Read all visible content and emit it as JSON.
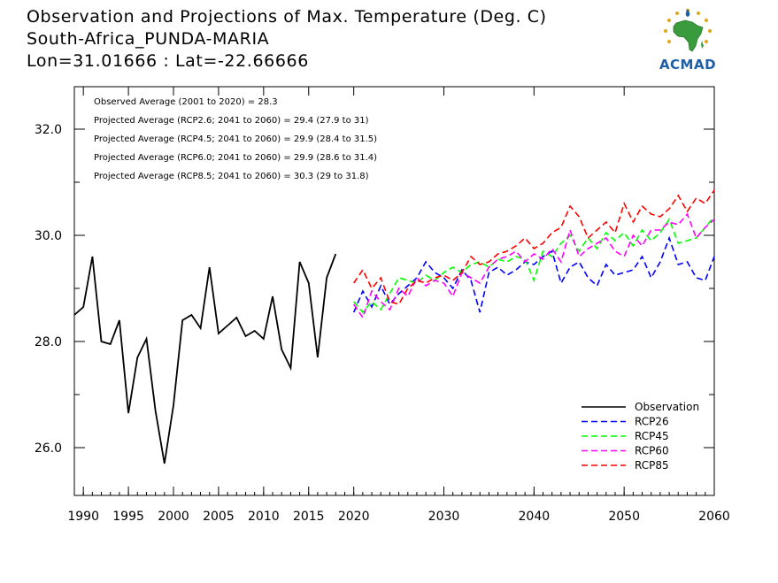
{
  "header": {
    "title": "Observation and Projections of Max. Temperature (Deg. C)",
    "station": "South-Africa_PUNDA-MARIA",
    "coords": "Lon=31.01666 : Lat=-22.66666"
  },
  "logo": {
    "text": "ACMAD"
  },
  "chart_data": {
    "type": "line",
    "xlim": [
      1989,
      2060
    ],
    "ylim": [
      25.1,
      32.8
    ],
    "grid": false,
    "legend_position": "bottom-right",
    "y_ticks": [
      26.0,
      28.0,
      30.0,
      32.0
    ],
    "y_tick_labels": [
      "26.0",
      "28.0",
      "30.0",
      "32.0"
    ],
    "x_ticks_obs": [
      1990,
      1995,
      2000,
      2005,
      2010,
      2015,
      2020
    ],
    "x_tick_labels_obs": [
      "1990",
      "1995",
      "2000",
      "2005",
      "2010",
      "2015",
      "2020"
    ],
    "x_ticks_proj": [
      2030,
      2040,
      2050,
      2060
    ],
    "x_tick_labels_proj": [
      "2030",
      "2040",
      "2050",
      "2060"
    ],
    "annotations": [
      "Observed Average (2001 to 2020) = 28.3",
      "Projected Average (RCP2.6; 2041 to 2060) = 29.4 (27.9 to 31)",
      "Projected Average (RCP4.5; 2041 to 2060) = 29.9 (28.4 to 31.5)",
      "Projected Average (RCP6.0; 2041 to 2060) = 29.9 (28.6 to 31.4)",
      "Projected Average (RCP8.5; 2041 to 2060) = 30.3 (29 to 31.8)"
    ],
    "observation": {
      "name": "Observation",
      "color": "#000000",
      "x": [
        1989,
        1990,
        1991,
        1992,
        1993,
        1994,
        1995,
        1996,
        1997,
        1998,
        1999,
        2000,
        2001,
        2002,
        2003,
        2004,
        2005,
        2006,
        2007,
        2008,
        2009,
        2010,
        2011,
        2012,
        2013,
        2014,
        2015,
        2016,
        2017,
        2018,
        2019
      ],
      "values": [
        28.5,
        28.65,
        29.6,
        28.0,
        27.95,
        28.4,
        26.65,
        27.7,
        28.05,
        26.7,
        25.7,
        26.8,
        28.4,
        28.5,
        28.25,
        29.4,
        28.15,
        28.3,
        28.45,
        28.1,
        28.2,
        28.05,
        28.85,
        27.85,
        27.5,
        29.5,
        29.1,
        27.7,
        29.2,
        29.65,
        null
      ]
    },
    "projection_x": [
      2020,
      2021,
      2022,
      2023,
      2024,
      2025,
      2026,
      2027,
      2028,
      2029,
      2030,
      2031,
      2032,
      2033,
      2034,
      2035,
      2036,
      2037,
      2038,
      2039,
      2040,
      2041,
      2042,
      2043,
      2044,
      2045,
      2046,
      2047,
      2048,
      2049,
      2050,
      2051,
      2052,
      2053,
      2054,
      2055,
      2056,
      2057,
      2058,
      2059,
      2060
    ],
    "series": [
      {
        "name": "RCP26",
        "color": "#0000ff",
        "values": [
          28.55,
          28.95,
          28.65,
          29.05,
          28.7,
          28.9,
          29.05,
          29.2,
          29.5,
          29.3,
          29.2,
          29.0,
          29.35,
          29.15,
          28.55,
          29.3,
          29.4,
          29.25,
          29.35,
          29.5,
          29.45,
          29.6,
          29.7,
          29.1,
          29.4,
          29.5,
          29.2,
          29.05,
          29.45,
          29.25,
          29.3,
          29.35,
          29.6,
          29.2,
          29.5,
          29.95,
          29.45,
          29.5,
          29.2,
          29.15,
          29.6
        ]
      },
      {
        "name": "RCP45",
        "color": "#00ff00",
        "values": [
          28.75,
          28.55,
          28.75,
          28.6,
          28.9,
          29.2,
          29.15,
          29.1,
          29.25,
          29.15,
          29.3,
          29.4,
          29.3,
          29.45,
          29.5,
          29.4,
          29.55,
          29.5,
          29.6,
          29.55,
          29.15,
          29.7,
          29.6,
          29.85,
          30.0,
          29.7,
          29.95,
          29.75,
          30.05,
          29.9,
          30.05,
          29.8,
          30.1,
          29.9,
          30.05,
          30.3,
          29.85,
          29.9,
          29.95,
          30.15,
          30.35
        ]
      },
      {
        "name": "RCP60",
        "color": "#ff00ff",
        "values": [
          28.7,
          28.45,
          28.95,
          28.75,
          28.6,
          29.0,
          28.85,
          29.2,
          29.05,
          29.15,
          29.1,
          28.85,
          29.3,
          29.2,
          29.1,
          29.4,
          29.55,
          29.6,
          29.7,
          29.5,
          29.65,
          29.55,
          29.75,
          29.5,
          30.1,
          29.6,
          29.75,
          29.85,
          29.95,
          29.7,
          29.6,
          30.0,
          29.8,
          30.1,
          30.1,
          30.25,
          30.2,
          30.4,
          29.95,
          30.15,
          30.3
        ]
      },
      {
        "name": "RCP85",
        "color": "#ff0000",
        "values": [
          29.1,
          29.35,
          29.0,
          29.2,
          28.75,
          28.7,
          29.0,
          29.15,
          29.1,
          29.2,
          29.25,
          29.15,
          29.3,
          29.6,
          29.45,
          29.5,
          29.65,
          29.7,
          29.8,
          29.95,
          29.75,
          29.85,
          30.05,
          30.15,
          30.55,
          30.35,
          29.95,
          30.1,
          30.25,
          30.05,
          30.6,
          30.25,
          30.55,
          30.4,
          30.35,
          30.5,
          30.75,
          30.45,
          30.7,
          30.6,
          30.85
        ]
      }
    ]
  }
}
